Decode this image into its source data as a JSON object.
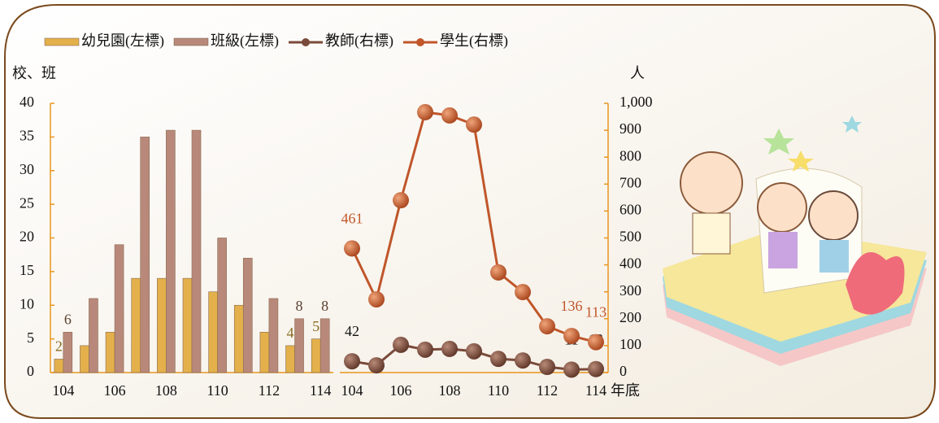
{
  "chart_data": [
    {
      "type": "bar",
      "categories": [
        "104",
        null,
        "106",
        null,
        "108",
        null,
        "110",
        null,
        "112",
        null,
        "114"
      ],
      "ylabel": "校、班",
      "ylim": [
        0,
        40
      ],
      "yticks": [
        0,
        5,
        10,
        15,
        20,
        25,
        30,
        35,
        40
      ],
      "series": [
        {
          "name": "幼兒園(左標)",
          "color": "#e3b04b",
          "values": [
            2,
            4,
            6,
            14,
            14,
            14,
            12,
            10,
            6,
            4,
            5
          ],
          "value_labels": [
            "2",
            null,
            null,
            null,
            null,
            null,
            null,
            null,
            null,
            "4",
            "5"
          ]
        },
        {
          "name": "班級(左標)",
          "color": "#b8897a",
          "values": [
            6,
            11,
            19,
            35,
            36,
            36,
            20,
            17,
            11,
            8,
            8
          ],
          "value_labels": [
            "6",
            null,
            null,
            null,
            null,
            null,
            null,
            null,
            null,
            "8",
            "8"
          ]
        }
      ]
    },
    {
      "type": "line",
      "categories": [
        "104",
        null,
        "106",
        null,
        "108",
        null,
        "110",
        null,
        "112",
        null,
        "114"
      ],
      "xlabel": "年底",
      "ylabel": "人",
      "ylim": [
        0,
        1000
      ],
      "yticks": [
        0,
        100,
        200,
        300,
        400,
        500,
        600,
        700,
        800,
        900,
        {
          "value": 1000,
          "label": "1,000"
        }
      ],
      "series": [
        {
          "name": "教師(右標)",
          "color": "#7a4a3a",
          "values": [
            42,
            27,
            103,
            85,
            88,
            79,
            51,
            45,
            21,
            11,
            13
          ],
          "value_labels": [
            "42",
            null,
            null,
            null,
            null,
            null,
            null,
            null,
            null,
            "11",
            "13"
          ]
        },
        {
          "name": "學生(右標)",
          "color": "#c0562a",
          "values": [
            461,
            272,
            640,
            967,
            955,
            921,
            372,
            299,
            172,
            136,
            113
          ],
          "value_labels": [
            "461",
            null,
            null,
            null,
            null,
            null,
            null,
            null,
            null,
            "136",
            "113"
          ]
        }
      ]
    }
  ]
}
